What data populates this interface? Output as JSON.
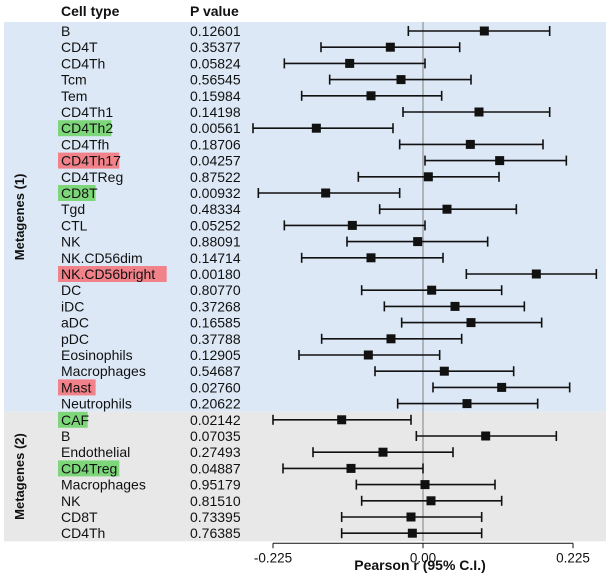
{
  "chart_data": {
    "type": "forest",
    "headers": {
      "cell_type": "Cell type",
      "p_value": "P value"
    },
    "xlabel": "Pearson r (95% C.I.)",
    "x_ticks": [
      "-0.225",
      "0.00",
      "0.225"
    ],
    "xlim": [
      -0.225,
      0.225
    ],
    "colors": {
      "group1_bg": "#dce8f5",
      "group2_bg": "#e8e8e8",
      "green_highlight": "#7ed67a",
      "red_highlight": "#f2828a",
      "marker": "#111111",
      "zero_line": "#7f7f7f"
    },
    "groups": [
      {
        "name": "Metagenes (1)",
        "rows": [
          {
            "label": "B",
            "p": "0.12601",
            "r": 0.092,
            "lo": -0.022,
            "hi": 0.19,
            "highlight": null
          },
          {
            "label": "CD4T",
            "p": "0.35377",
            "r": -0.049,
            "lo": -0.153,
            "hi": 0.055,
            "highlight": null
          },
          {
            "label": "CD4Th",
            "p": "0.05824",
            "r": -0.11,
            "lo": -0.208,
            "hi": 0.003,
            "highlight": null
          },
          {
            "label": "Tcm",
            "p": "0.56545",
            "r": -0.033,
            "lo": -0.14,
            "hi": 0.072,
            "highlight": null
          },
          {
            "label": "Tem",
            "p": "0.15984",
            "r": -0.078,
            "lo": -0.182,
            "hi": 0.028,
            "highlight": null
          },
          {
            "label": "CD4Th1",
            "p": "0.14198",
            "r": 0.084,
            "lo": -0.03,
            "hi": 0.19,
            "highlight": null
          },
          {
            "label": "CD4Th2",
            "p": "0.00561",
            "r": -0.16,
            "lo": -0.255,
            "hi": -0.045,
            "highlight": "green"
          },
          {
            "label": "CD4Tfh",
            "p": "0.18706",
            "r": 0.071,
            "lo": -0.035,
            "hi": 0.18,
            "highlight": null
          },
          {
            "label": "CD4Th17",
            "p": "0.04257",
            "r": 0.115,
            "lo": 0.003,
            "hi": 0.215,
            "highlight": "red"
          },
          {
            "label": "CD4TReg",
            "p": "0.87522",
            "r": 0.008,
            "lo": -0.097,
            "hi": 0.114,
            "highlight": null
          },
          {
            "label": "CD8T",
            "p": "0.00932",
            "r": -0.146,
            "lo": -0.247,
            "hi": -0.035,
            "highlight": "green"
          },
          {
            "label": "Tgd",
            "p": "0.48334",
            "r": 0.036,
            "lo": -0.065,
            "hi": 0.14,
            "highlight": null
          },
          {
            "label": "CTL",
            "p": "0.05252",
            "r": -0.106,
            "lo": -0.208,
            "hi": 0.003,
            "highlight": null
          },
          {
            "label": "NK",
            "p": "0.88091",
            "r": -0.008,
            "lo": -0.114,
            "hi": 0.097,
            "highlight": null
          },
          {
            "label": "NK.CD56dim",
            "p": "0.14714",
            "r": -0.078,
            "lo": -0.182,
            "hi": 0.03,
            "highlight": null
          },
          {
            "label": "NK.CD56bright",
            "p": "0.00180",
            "r": 0.17,
            "lo": 0.065,
            "hi": 0.26,
            "highlight": "red"
          },
          {
            "label": "DC",
            "p": "0.80770",
            "r": 0.013,
            "lo": -0.092,
            "hi": 0.118,
            "highlight": null
          },
          {
            "label": "iDC",
            "p": "0.37268",
            "r": 0.048,
            "lo": -0.058,
            "hi": 0.152,
            "highlight": null
          },
          {
            "label": "aDC",
            "p": "0.16585",
            "r": 0.072,
            "lo": -0.032,
            "hi": 0.178,
            "highlight": null
          },
          {
            "label": "pDC",
            "p": "0.37788",
            "r": -0.048,
            "lo": -0.152,
            "hi": 0.058,
            "highlight": null
          },
          {
            "label": "Eosinophils",
            "p": "0.12905",
            "r": -0.082,
            "lo": -0.186,
            "hi": 0.025,
            "highlight": null
          },
          {
            "label": "Macrophages",
            "p": "0.54687",
            "r": 0.032,
            "lo": -0.072,
            "hi": 0.136,
            "highlight": null
          },
          {
            "label": "Mast",
            "p": "0.02760",
            "r": 0.118,
            "lo": 0.015,
            "hi": 0.22,
            "highlight": "red"
          },
          {
            "label": "Neutrophils",
            "p": "0.20622",
            "r": 0.066,
            "lo": -0.038,
            "hi": 0.172,
            "highlight": null
          }
        ]
      },
      {
        "name": "Metagenes (2)",
        "rows": [
          {
            "label": "CAF",
            "p": "0.02142",
            "r": -0.122,
            "lo": -0.225,
            "hi": -0.018,
            "highlight": "green"
          },
          {
            "label": "B",
            "p": "0.07035",
            "r": 0.094,
            "lo": -0.01,
            "hi": 0.2,
            "highlight": null
          },
          {
            "label": "Endothelial",
            "p": "0.27493",
            "r": -0.06,
            "lo": -0.165,
            "hi": 0.045,
            "highlight": null
          },
          {
            "label": "CD4Treg",
            "p": "0.04887",
            "r": -0.108,
            "lo": -0.21,
            "hi": 0.0,
            "highlight": "green"
          },
          {
            "label": "Macrophages",
            "p": "0.95179",
            "r": 0.003,
            "lo": -0.1,
            "hi": 0.108,
            "highlight": null
          },
          {
            "label": "NK",
            "p": "0.81510",
            "r": 0.012,
            "lo": -0.092,
            "hi": 0.118,
            "highlight": null
          },
          {
            "label": "CD8T",
            "p": "0.73395",
            "r": -0.018,
            "lo": -0.122,
            "hi": 0.088,
            "highlight": null
          },
          {
            "label": "CD4Th",
            "p": "0.76385",
            "r": -0.016,
            "lo": -0.122,
            "hi": 0.088,
            "highlight": null
          }
        ]
      }
    ]
  }
}
